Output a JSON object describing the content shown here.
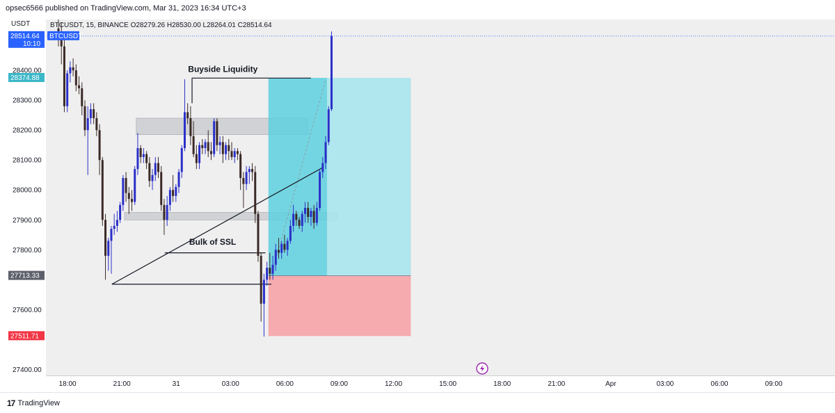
{
  "attribution": "opsec6566 published on TradingView.com, Mar 31, 2023 16:34 UTC+3",
  "currency": "USDT",
  "legend": {
    "symbol": "BTCUSDT",
    "interval": "15",
    "exchange": "BINANCE",
    "open": "O28279.26",
    "high": "H28530.00",
    "low": "L28264.01",
    "close": "C28514.64",
    "text": "BTCUSDT, 15, BINANCE  O28279.26  H28530.00  L28264.01  C28514.64"
  },
  "footer_brand": "TradingView",
  "colors": {
    "up": "#2a2fc8",
    "down": "#3b2a27",
    "zone_gray": "#c6c8cc",
    "target_dark": "#5ed0df",
    "target_light": "#a8e4ec",
    "stop": "#f5a7ab",
    "price_tag": "#2962ff",
    "entry_tag": "#3ab7c8",
    "mid_tag": "#5d606b",
    "stop_tag": "#f23645"
  },
  "chart_data": {
    "type": "candlestick",
    "instrument": "BTCUSDT",
    "interval": "15",
    "ylim": [
      27380,
      28570
    ],
    "yticks": [
      27400,
      27500,
      27600,
      27700,
      27800,
      27900,
      28000,
      28100,
      28200,
      28300,
      28400
    ],
    "ytick_labels": [
      "27400.00",
      "",
      "27600.00",
      "",
      "27800.00",
      "27900.00",
      "28000.00",
      "28100.00",
      "28200.00",
      "28300.00",
      "28400.00"
    ],
    "x_ticks": [
      "18:00",
      "21:00",
      "31",
      "03:00",
      "06:00",
      "09:00",
      "12:00",
      "15:00",
      "18:00",
      "21:00",
      "Apr",
      "03:00",
      "06:00",
      "09:00"
    ],
    "price_tags": [
      {
        "label": "28514.64",
        "sublabel": "10:10",
        "value": 28514.64,
        "kind": "last"
      },
      {
        "label": "BTCUSDT",
        "value": 28514.64,
        "kind": "symbol"
      },
      {
        "label": "28374.88",
        "value": 28374.88,
        "kind": "target"
      },
      {
        "label": "27713.33",
        "value": 27713.33,
        "kind": "entry"
      },
      {
        "label": "27511.71",
        "value": 27511.71,
        "kind": "stop"
      }
    ],
    "candles": [
      {
        "o": 28540,
        "h": 28570,
        "l": 28480,
        "c": 28510
      },
      {
        "o": 28510,
        "h": 28560,
        "l": 28420,
        "c": 28480
      },
      {
        "o": 28480,
        "h": 28520,
        "l": 28260,
        "c": 28280
      },
      {
        "o": 28280,
        "h": 28400,
        "l": 28260,
        "c": 28390
      },
      {
        "o": 28390,
        "h": 28430,
        "l": 28360,
        "c": 28410
      },
      {
        "o": 28410,
        "h": 28440,
        "l": 28380,
        "c": 28400
      },
      {
        "o": 28400,
        "h": 28420,
        "l": 28330,
        "c": 28350
      },
      {
        "o": 28350,
        "h": 28380,
        "l": 28320,
        "c": 28340
      },
      {
        "o": 28340,
        "h": 28360,
        "l": 28250,
        "c": 28280
      },
      {
        "o": 28280,
        "h": 28300,
        "l": 28180,
        "c": 28200
      },
      {
        "o": 28200,
        "h": 28280,
        "l": 28050,
        "c": 28240
      },
      {
        "o": 28240,
        "h": 28290,
        "l": 28220,
        "c": 28270
      },
      {
        "o": 28270,
        "h": 28290,
        "l": 28220,
        "c": 28240
      },
      {
        "o": 28240,
        "h": 28260,
        "l": 28180,
        "c": 28200
      },
      {
        "o": 28200,
        "h": 28220,
        "l": 28050,
        "c": 28100
      },
      {
        "o": 28100,
        "h": 28110,
        "l": 27880,
        "c": 27900
      },
      {
        "o": 27900,
        "h": 27920,
        "l": 27700,
        "c": 27780
      },
      {
        "o": 27780,
        "h": 27840,
        "l": 27730,
        "c": 27830
      },
      {
        "o": 27830,
        "h": 27880,
        "l": 27720,
        "c": 27870
      },
      {
        "o": 27870,
        "h": 27920,
        "l": 27850,
        "c": 27880
      },
      {
        "o": 27880,
        "h": 27930,
        "l": 27860,
        "c": 27900
      },
      {
        "o": 27900,
        "h": 27960,
        "l": 27890,
        "c": 27950
      },
      {
        "o": 27950,
        "h": 28050,
        "l": 27930,
        "c": 28040
      },
      {
        "o": 28040,
        "h": 28060,
        "l": 27960,
        "c": 27990
      },
      {
        "o": 27990,
        "h": 28010,
        "l": 27920,
        "c": 27970
      },
      {
        "o": 27970,
        "h": 28000,
        "l": 27930,
        "c": 27960
      },
      {
        "o": 27960,
        "h": 28080,
        "l": 27950,
        "c": 28070
      },
      {
        "o": 28070,
        "h": 28190,
        "l": 28050,
        "c": 28140
      },
      {
        "o": 28140,
        "h": 28150,
        "l": 28090,
        "c": 28110
      },
      {
        "o": 28110,
        "h": 28140,
        "l": 28090,
        "c": 28120
      },
      {
        "o": 28120,
        "h": 28130,
        "l": 28070,
        "c": 28090
      },
      {
        "o": 28090,
        "h": 28110,
        "l": 28010,
        "c": 28030
      },
      {
        "o": 28030,
        "h": 28070,
        "l": 28000,
        "c": 28050
      },
      {
        "o": 28050,
        "h": 28110,
        "l": 28030,
        "c": 28090
      },
      {
        "o": 28090,
        "h": 28110,
        "l": 28040,
        "c": 28060
      },
      {
        "o": 28060,
        "h": 28080,
        "l": 27930,
        "c": 27950
      },
      {
        "o": 27950,
        "h": 27970,
        "l": 27850,
        "c": 27900
      },
      {
        "o": 27900,
        "h": 27980,
        "l": 27880,
        "c": 27950
      },
      {
        "o": 27950,
        "h": 28010,
        "l": 27930,
        "c": 28000
      },
      {
        "o": 28000,
        "h": 28050,
        "l": 27960,
        "c": 27980
      },
      {
        "o": 27980,
        "h": 28020,
        "l": 27960,
        "c": 28010
      },
      {
        "o": 28010,
        "h": 28070,
        "l": 27990,
        "c": 28060
      },
      {
        "o": 28060,
        "h": 28150,
        "l": 28040,
        "c": 28140
      },
      {
        "o": 28140,
        "h": 28370,
        "l": 28130,
        "c": 28260
      },
      {
        "o": 28260,
        "h": 28290,
        "l": 28220,
        "c": 28240
      },
      {
        "o": 28240,
        "h": 28280,
        "l": 28150,
        "c": 28180
      },
      {
        "o": 28180,
        "h": 28230,
        "l": 28110,
        "c": 28120
      },
      {
        "o": 28120,
        "h": 28150,
        "l": 28070,
        "c": 28090
      },
      {
        "o": 28090,
        "h": 28160,
        "l": 28070,
        "c": 28150
      },
      {
        "o": 28150,
        "h": 28170,
        "l": 28120,
        "c": 28140
      },
      {
        "o": 28140,
        "h": 28170,
        "l": 28120,
        "c": 28160
      },
      {
        "o": 28160,
        "h": 28200,
        "l": 28110,
        "c": 28130
      },
      {
        "o": 28130,
        "h": 28160,
        "l": 28100,
        "c": 28120
      },
      {
        "o": 28120,
        "h": 28240,
        "l": 28110,
        "c": 28230
      },
      {
        "o": 28230,
        "h": 28240,
        "l": 28130,
        "c": 28150
      },
      {
        "o": 28150,
        "h": 28180,
        "l": 28120,
        "c": 28160
      },
      {
        "o": 28160,
        "h": 28180,
        "l": 28090,
        "c": 28120
      },
      {
        "o": 28120,
        "h": 28160,
        "l": 28100,
        "c": 28150
      },
      {
        "o": 28150,
        "h": 28170,
        "l": 28100,
        "c": 28130
      },
      {
        "o": 28130,
        "h": 28160,
        "l": 28100,
        "c": 28110
      },
      {
        "o": 28110,
        "h": 28140,
        "l": 28090,
        "c": 28130
      },
      {
        "o": 28130,
        "h": 28140,
        "l": 28100,
        "c": 28120
      },
      {
        "o": 28120,
        "h": 28130,
        "l": 28000,
        "c": 28040
      },
      {
        "o": 28040,
        "h": 28060,
        "l": 27940,
        "c": 28020
      },
      {
        "o": 28020,
        "h": 28080,
        "l": 28000,
        "c": 28060
      },
      {
        "o": 28060,
        "h": 28080,
        "l": 28020,
        "c": 28070
      },
      {
        "o": 28070,
        "h": 28090,
        "l": 28030,
        "c": 28060
      },
      {
        "o": 28060,
        "h": 28080,
        "l": 27890,
        "c": 27920
      },
      {
        "o": 27920,
        "h": 27930,
        "l": 27760,
        "c": 27780
      },
      {
        "o": 27780,
        "h": 27790,
        "l": 27560,
        "c": 27620
      },
      {
        "o": 27620,
        "h": 27720,
        "l": 27510,
        "c": 27700
      },
      {
        "o": 27700,
        "h": 27760,
        "l": 27680,
        "c": 27740
      },
      {
        "o": 27740,
        "h": 27790,
        "l": 27700,
        "c": 27720
      },
      {
        "o": 27720,
        "h": 27780,
        "l": 27700,
        "c": 27750
      },
      {
        "o": 27750,
        "h": 27820,
        "l": 27730,
        "c": 27800
      },
      {
        "o": 27800,
        "h": 27840,
        "l": 27770,
        "c": 27790
      },
      {
        "o": 27790,
        "h": 27830,
        "l": 27770,
        "c": 27820
      },
      {
        "o": 27820,
        "h": 27850,
        "l": 27790,
        "c": 27800
      },
      {
        "o": 27800,
        "h": 27840,
        "l": 27780,
        "c": 27830
      },
      {
        "o": 27830,
        "h": 27900,
        "l": 27820,
        "c": 27880
      },
      {
        "o": 27880,
        "h": 27950,
        "l": 27860,
        "c": 27920
      },
      {
        "o": 27920,
        "h": 27930,
        "l": 27880,
        "c": 27900
      },
      {
        "o": 27900,
        "h": 27910,
        "l": 27870,
        "c": 27880
      },
      {
        "o": 27880,
        "h": 27930,
        "l": 27860,
        "c": 27920
      },
      {
        "o": 27920,
        "h": 27960,
        "l": 27890,
        "c": 27940
      },
      {
        "o": 27940,
        "h": 27960,
        "l": 27890,
        "c": 27910
      },
      {
        "o": 27910,
        "h": 27940,
        "l": 27880,
        "c": 27930
      },
      {
        "o": 27930,
        "h": 27950,
        "l": 27870,
        "c": 27890
      },
      {
        "o": 27890,
        "h": 27960,
        "l": 27880,
        "c": 27940
      },
      {
        "o": 27940,
        "h": 28070,
        "l": 27930,
        "c": 28060
      },
      {
        "o": 28060,
        "h": 28110,
        "l": 28040,
        "c": 28090
      },
      {
        "o": 28090,
        "h": 28180,
        "l": 28070,
        "c": 28160
      },
      {
        "o": 28160,
        "h": 28280,
        "l": 28150,
        "c": 28270
      },
      {
        "o": 28270,
        "h": 28530,
        "l": 28264,
        "c": 28514.64
      }
    ],
    "zones": [
      {
        "type": "rect",
        "y0": 28185,
        "y1": 28240,
        "t0": 26.5,
        "t1": 85
      },
      {
        "type": "rect",
        "y0": 27900,
        "y1": 27925,
        "t0": 22.5,
        "t1": 95
      }
    ],
    "position": {
      "entry": 27713.33,
      "target": 28374.88,
      "stop": 27511.71,
      "t0": 71.5,
      "t1": 120
    },
    "lines": [
      {
        "t0": 18.2,
        "p0": 27685,
        "t1": 90,
        "p1": 28075
      },
      {
        "t0": 18.2,
        "p0": 27685,
        "t1": 72.5,
        "p1": 27685
      },
      {
        "t0": 36.2,
        "p0": 27790,
        "t1": 70.5,
        "p1": 27790
      },
      {
        "t0": 45.5,
        "p0": 28374,
        "t1": 86,
        "p1": 28374
      },
      {
        "t0": 45.5,
        "p0": 28374,
        "t1": 45.5,
        "p1": 28290
      }
    ],
    "annotations": [
      {
        "text": "Buyside Liquidity",
        "t": 56,
        "value": 28385
      },
      {
        "text": "Bulk of SSL",
        "t": 52.5,
        "value": 27808
      }
    ]
  }
}
